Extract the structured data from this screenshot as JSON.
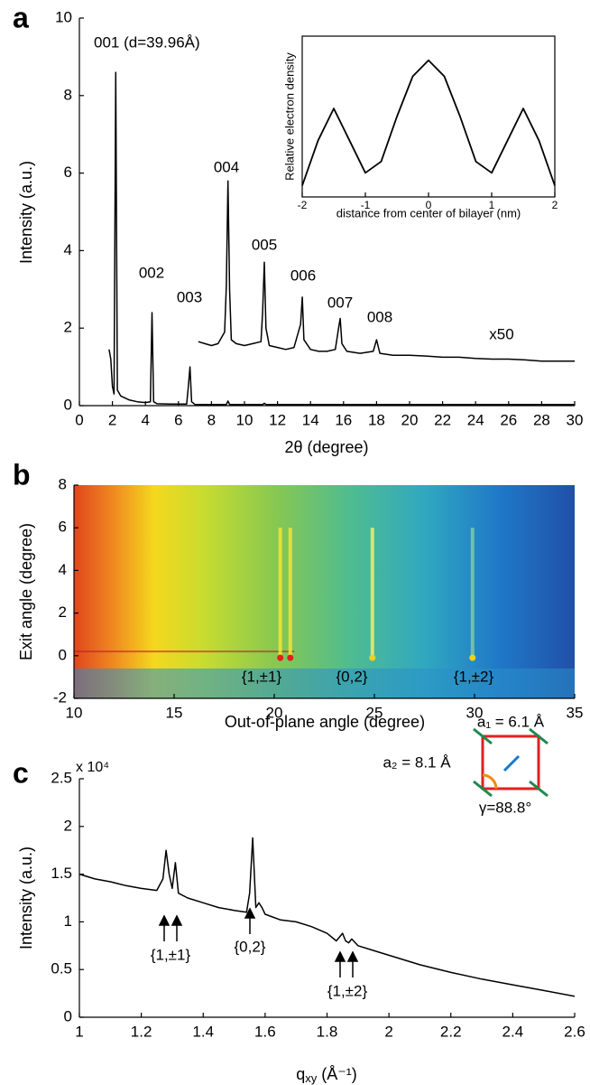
{
  "chart_data": [
    {
      "type": "line",
      "panel_label": "a",
      "xlabel": "2θ (degree)",
      "ylabel": "Intensity (a.u.)",
      "xlim": [
        0,
        30
      ],
      "xticks": [
        0,
        2,
        4,
        6,
        8,
        10,
        12,
        14,
        16,
        18,
        20,
        22,
        24,
        26,
        28,
        30
      ],
      "ylim": [
        0,
        10
      ],
      "yticks": [
        0,
        2,
        4,
        6,
        8,
        10
      ],
      "series": [
        {
          "color": "#000000",
          "x": [
            1.8,
            1.9,
            2.0,
            2.1,
            2.2,
            2.3,
            2.5,
            3,
            3.5,
            4,
            4.3,
            4.4,
            4.5,
            4.7,
            5.5,
            6.5,
            6.6,
            6.7,
            6.8,
            7,
            8.9,
            9.0,
            9.1,
            11.1,
            11.2,
            11.3,
            20,
            30
          ],
          "values": [
            1.45,
            1.2,
            0.5,
            0.3,
            8.6,
            0.4,
            0.25,
            0.15,
            0.1,
            0.08,
            0.1,
            2.4,
            0.1,
            0.05,
            0.04,
            0.04,
            0.5,
            1.0,
            0.1,
            0.03,
            0.03,
            0.12,
            0.03,
            0.03,
            0.06,
            0.03,
            0.03,
            0.03
          ]
        },
        {
          "color": "#000000",
          "x": [
            7.2,
            7.6,
            8.0,
            8.4,
            8.8,
            8.9,
            9.0,
            9.1,
            9.2,
            9.5,
            10,
            10.5,
            11.0,
            11.1,
            11.2,
            11.3,
            11.5,
            12,
            12.5,
            13,
            13.4,
            13.5,
            13.6,
            14,
            14.5,
            15,
            15.5,
            15.7,
            15.8,
            15.9,
            16.2,
            17,
            17.8,
            18.0,
            18.2,
            19,
            20,
            21,
            22,
            23,
            24,
            25,
            26,
            27,
            28,
            29,
            30
          ],
          "values": [
            1.65,
            1.6,
            1.55,
            1.6,
            1.9,
            3.1,
            5.8,
            3.0,
            1.7,
            1.6,
            1.55,
            1.6,
            1.65,
            2.4,
            3.7,
            2.0,
            1.55,
            1.5,
            1.45,
            1.5,
            2.1,
            2.8,
            1.7,
            1.45,
            1.4,
            1.4,
            1.45,
            2.0,
            2.25,
            1.6,
            1.4,
            1.35,
            1.4,
            1.7,
            1.35,
            1.3,
            1.3,
            1.28,
            1.25,
            1.25,
            1.22,
            1.2,
            1.2,
            1.18,
            1.15,
            1.15,
            1.15
          ]
        }
      ],
      "annotations": [
        "001 (d=39.96Å)",
        "002",
        "003",
        "004",
        "005",
        "006",
        "007",
        "008",
        "x50"
      ]
    },
    {
      "type": "line",
      "xlabel": "distance from center of bilayer (nm)",
      "ylabel": "Relative electron density",
      "xlim": [
        -2,
        2
      ],
      "xticks": [
        -2,
        -1,
        0,
        1,
        2
      ],
      "ylim": [
        0,
        1
      ],
      "series": [
        {
          "color": "#000000",
          "x": [
            -2,
            -1.75,
            -1.5,
            -1.25,
            -1,
            -0.75,
            -0.5,
            -0.25,
            0,
            0.25,
            0.5,
            0.75,
            1,
            1.25,
            1.5,
            1.75,
            2
          ],
          "values": [
            0.07,
            0.35,
            0.55,
            0.35,
            0.15,
            0.22,
            0.5,
            0.75,
            0.85,
            0.75,
            0.5,
            0.22,
            0.15,
            0.35,
            0.55,
            0.35,
            0.07
          ]
        }
      ]
    },
    {
      "type": "image",
      "panel_label": "b",
      "xlabel": "Out-of-plane angle (degree)",
      "ylabel": "Exit angle (degree)",
      "xlim": [
        10,
        35
      ],
      "xticks": [
        10,
        15,
        20,
        25,
        30,
        35
      ],
      "ylim": [
        -2,
        8
      ],
      "yticks": [
        -2,
        0,
        2,
        4,
        6,
        8
      ],
      "annotations": [
        "{1,±1}",
        "{0,2}",
        "{1,±2}"
      ]
    },
    {
      "type": "line",
      "panel_label": "c",
      "xlabel": {
        "text": "q",
        "sub": "xy",
        "unit": " (Å⁻¹)"
      },
      "ylabel": "Intensity (a.u.)",
      "y_multiplier": "x 10⁴",
      "xlim": [
        1,
        2.6
      ],
      "xticks": [
        1,
        1.2,
        1.4,
        1.6,
        1.8,
        2,
        2.2,
        2.4,
        2.6
      ],
      "ylim": [
        0,
        2.5
      ],
      "yticks": [
        0,
        0.5,
        1,
        1.5,
        2,
        2.5
      ],
      "series": [
        {
          "color": "#000000",
          "x": [
            1.0,
            1.05,
            1.1,
            1.15,
            1.2,
            1.25,
            1.27,
            1.28,
            1.29,
            1.3,
            1.31,
            1.32,
            1.35,
            1.4,
            1.45,
            1.5,
            1.54,
            1.55,
            1.56,
            1.57,
            1.58,
            1.59,
            1.6,
            1.65,
            1.7,
            1.75,
            1.8,
            1.83,
            1.85,
            1.86,
            1.87,
            1.88,
            1.9,
            1.95,
            2.0,
            2.1,
            2.2,
            2.3,
            2.4,
            2.5,
            2.6
          ],
          "values": [
            1.5,
            1.45,
            1.42,
            1.38,
            1.35,
            1.33,
            1.45,
            1.75,
            1.5,
            1.35,
            1.62,
            1.3,
            1.25,
            1.2,
            1.15,
            1.12,
            1.1,
            1.3,
            1.88,
            1.15,
            1.2,
            1.15,
            1.08,
            1.02,
            1.0,
            0.95,
            0.88,
            0.8,
            0.88,
            0.8,
            0.78,
            0.82,
            0.75,
            0.7,
            0.65,
            0.55,
            0.47,
            0.4,
            0.34,
            0.28,
            0.22
          ]
        }
      ],
      "annotations": [
        "{1,±1}",
        "{0,2}",
        "{1,±2}",
        "a₁ = 6.1 Å",
        "a₂ = 8.1 Å",
        "γ=88.8°"
      ]
    }
  ]
}
